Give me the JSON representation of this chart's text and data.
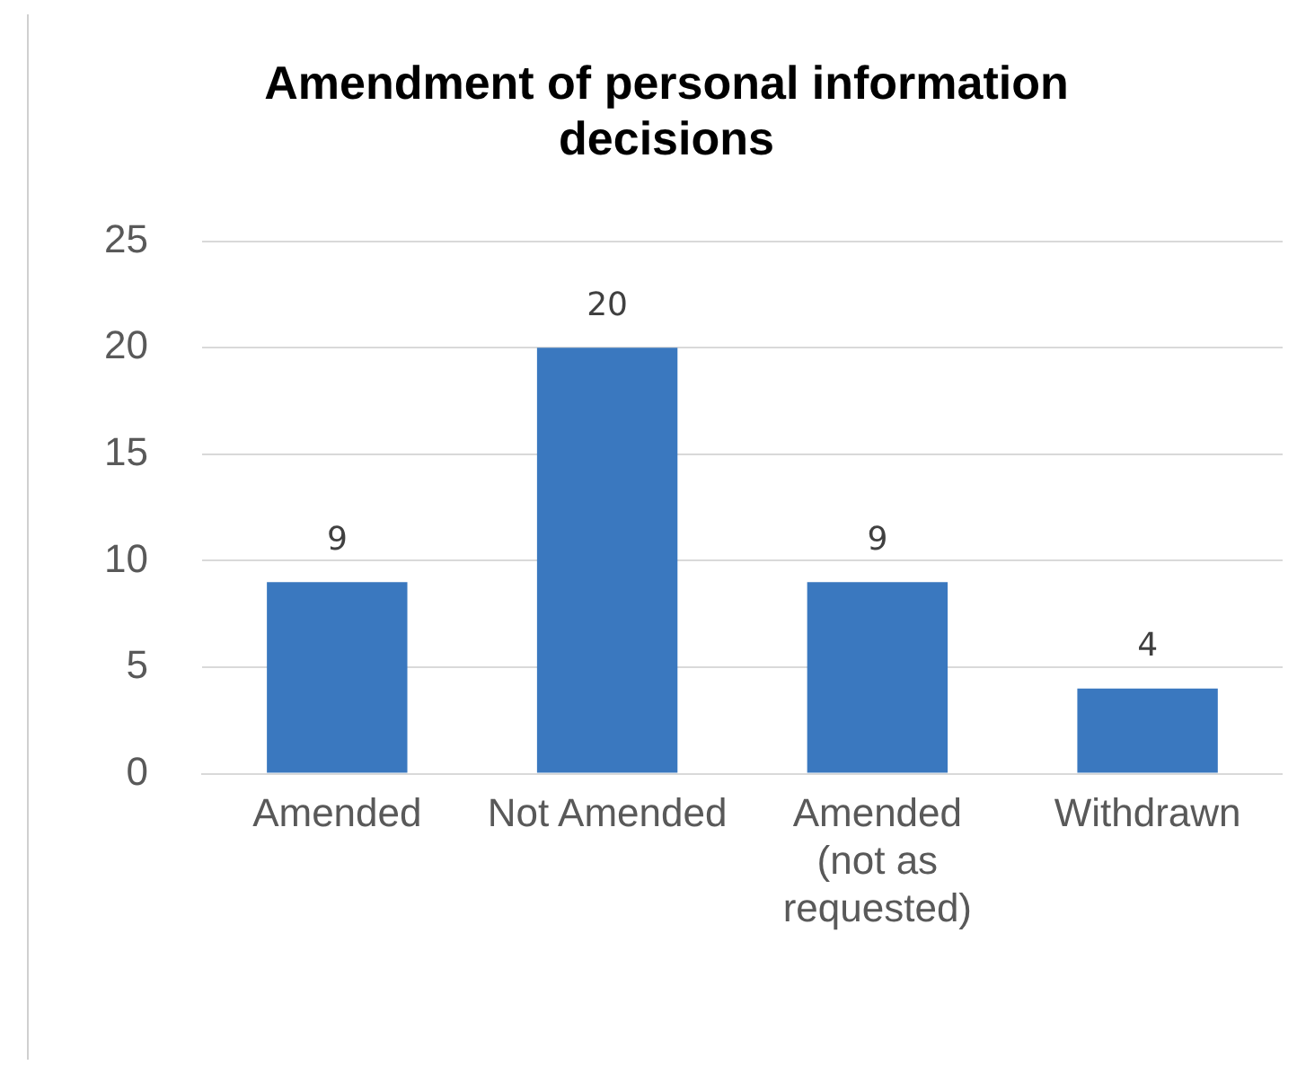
{
  "chart_data": {
    "type": "bar",
    "title": "Amendment of personal information decisions",
    "categories": [
      "Amended",
      "Not Amended",
      "Amended (not as requested)",
      "Withdrawn"
    ],
    "values": [
      9,
      20,
      9,
      4
    ],
    "color": "#3a78bf",
    "ylim": [
      0,
      25
    ],
    "yticks": [
      0,
      5,
      10,
      15,
      20,
      25
    ],
    "grid": "y",
    "data_labels": true,
    "legend": false
  }
}
